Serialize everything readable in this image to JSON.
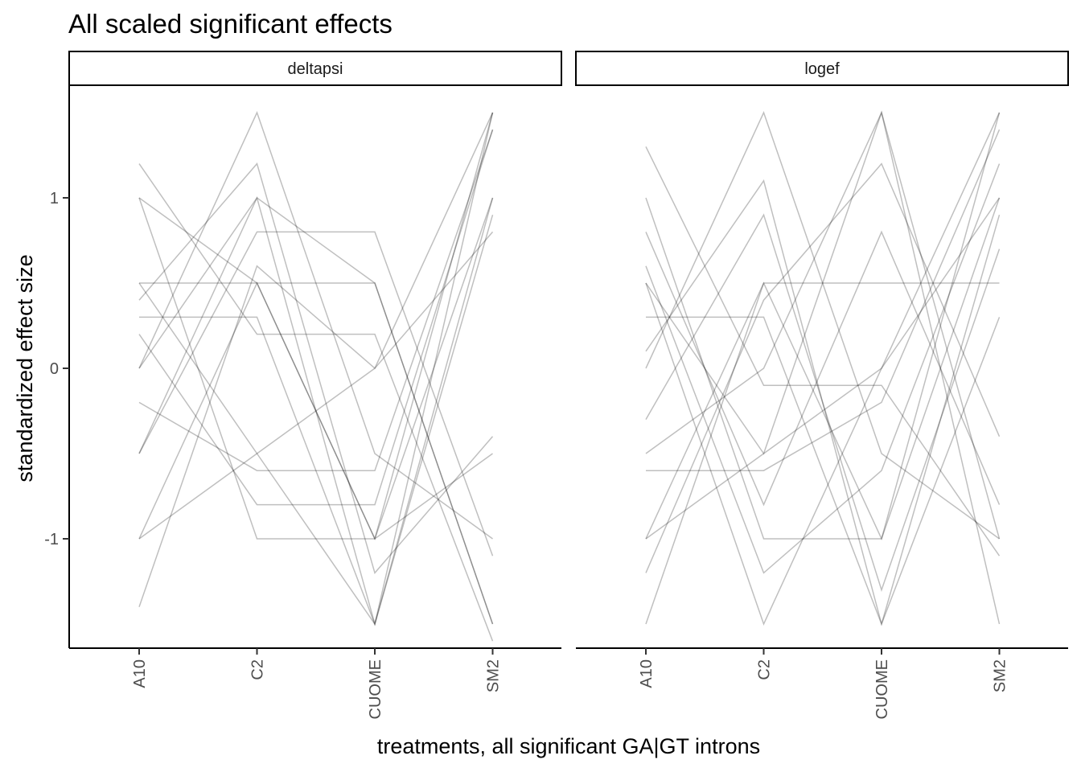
{
  "chart_data": {
    "type": "line",
    "title": "All scaled significant effects",
    "xlabel": "treatments, all significant GA|GT introns",
    "ylabel": "standardized effect size",
    "categories": [
      "A10",
      "C2",
      "CUOME",
      "SM2"
    ],
    "ylim": [
      -1.65,
      1.65
    ],
    "yticks": [
      -1,
      0,
      1
    ],
    "grid": false,
    "legend": "none",
    "line_color": "#000000",
    "line_opacity": 0.12,
    "panels": [
      {
        "strip_label": "deltapsi",
        "series": [
          {
            "values": [
              0.0,
              1.5,
              -0.5,
              -1.0
            ]
          },
          {
            "values": [
              0.5,
              0.5,
              0.5,
              -1.5
            ]
          },
          {
            "values": [
              -1.0,
              0.5,
              -1.0,
              1.5
            ]
          },
          {
            "values": [
              1.0,
              -1.0,
              -1.0,
              1.0
            ]
          },
          {
            "values": [
              0.0,
              1.0,
              0.5,
              -1.5
            ]
          },
          {
            "values": [
              -0.5,
              1.0,
              -1.5,
              1.0
            ]
          },
          {
            "values": [
              0.5,
              -0.5,
              -1.5,
              1.5
            ]
          },
          {
            "values": [
              -1.0,
              -0.5,
              0.0,
              1.5
            ]
          },
          {
            "values": [
              0.3,
              0.3,
              -1.5,
              0.9
            ]
          },
          {
            "values": [
              1.0,
              0.5,
              -1.0,
              -0.5
            ]
          },
          {
            "values": [
              -0.5,
              0.8,
              0.8,
              -1.1
            ]
          },
          {
            "values": [
              0.2,
              -0.8,
              -0.8,
              1.4
            ]
          },
          {
            "values": [
              1.2,
              0.2,
              0.2,
              -1.6
            ]
          },
          {
            "values": [
              -1.4,
              0.6,
              0.0,
              0.8
            ]
          },
          {
            "values": [
              0.4,
              1.2,
              -1.2,
              -0.4
            ]
          },
          {
            "values": [
              -0.2,
              -0.6,
              -0.6,
              1.4
            ]
          }
        ]
      },
      {
        "strip_label": "logef",
        "series": [
          {
            "values": [
              0.0,
              1.5,
              -0.5,
              -1.0
            ]
          },
          {
            "values": [
              0.5,
              -0.5,
              1.5,
              -1.5
            ]
          },
          {
            "values": [
              -1.0,
              0.5,
              -1.0,
              1.5
            ]
          },
          {
            "values": [
              1.0,
              -1.0,
              -1.0,
              1.0
            ]
          },
          {
            "values": [
              -0.5,
              0.0,
              1.5,
              -1.0
            ]
          },
          {
            "values": [
              0.5,
              -1.5,
              0.0,
              1.0
            ]
          },
          {
            "values": [
              -1.0,
              -0.5,
              0.0,
              1.5
            ]
          },
          {
            "values": [
              0.3,
              0.3,
              -1.5,
              0.9
            ]
          },
          {
            "values": [
              -1.5,
              0.5,
              0.5,
              0.5
            ]
          },
          {
            "values": [
              0.8,
              -0.8,
              0.8,
              -0.8
            ]
          },
          {
            "values": [
              -0.3,
              0.9,
              -1.3,
              0.7
            ]
          },
          {
            "values": [
              1.3,
              -0.1,
              -0.1,
              -1.1
            ]
          },
          {
            "values": [
              -0.6,
              -0.6,
              -0.2,
              1.4
            ]
          },
          {
            "values": [
              0.1,
              1.1,
              -1.5,
              0.3
            ]
          },
          {
            "values": [
              -1.2,
              0.4,
              1.2,
              -0.4
            ]
          },
          {
            "values": [
              0.6,
              -1.2,
              -0.6,
              1.2
            ]
          }
        ]
      }
    ]
  }
}
